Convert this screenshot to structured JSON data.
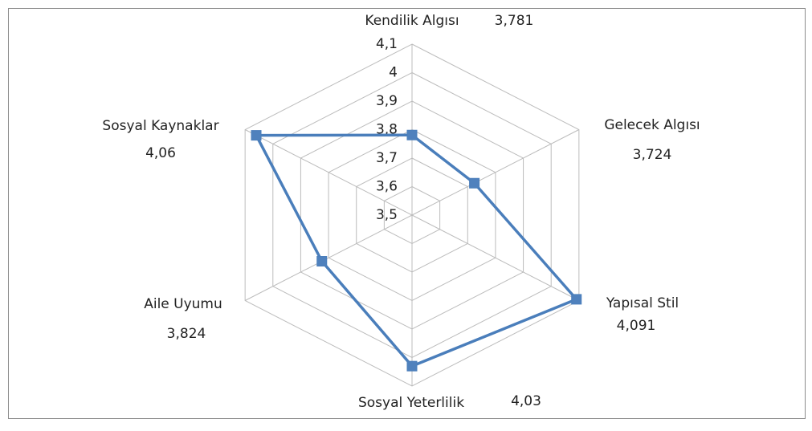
{
  "chart_data": {
    "type": "radar",
    "categories": [
      "Kendilik Algısı",
      "Gelecek Algısı",
      "Yapısal Stil",
      "Sosyal Yeterlilik",
      "Aile Uyumu",
      "Sosyal Kaynaklar"
    ],
    "series": [
      {
        "name": "",
        "color": "#4a7ebb",
        "values": [
          3.781,
          3.724,
          4.091,
          4.03,
          3.824,
          4.06
        ],
        "value_labels": [
          "3,781",
          "3,724",
          "4,091",
          "4,03",
          "3,824",
          "4,06"
        ]
      }
    ],
    "ylim": [
      3.5,
      4.1
    ],
    "yticks": [
      {
        "value": 3.5,
        "label": "3,5"
      },
      {
        "value": 3.6,
        "label": "3,6"
      },
      {
        "value": 3.7,
        "label": "3,7"
      },
      {
        "value": 3.8,
        "label": "3,8"
      },
      {
        "value": 3.9,
        "label": "3,9"
      },
      4,
      {
        "value": 4.1,
        "label": "4,1"
      }
    ],
    "grid": true
  }
}
